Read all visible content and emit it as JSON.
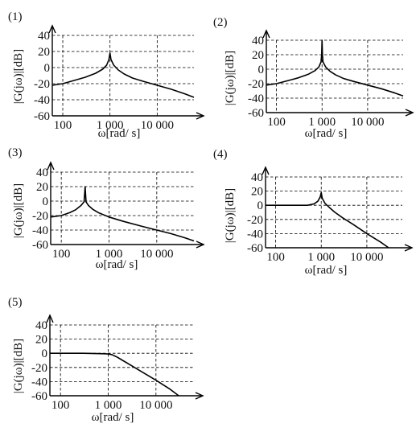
{
  "chart_data": [
    {
      "type": "line",
      "panel_label": "(1)",
      "ylabel": "|G(jω)|[dB]",
      "xlabel": "ω[rad/ s]",
      "x_scale": "log",
      "xlim": [
        60,
        60000
      ],
      "ylim": [
        -60,
        40
      ],
      "y_ticks": [
        "40",
        "20",
        "0",
        "-20",
        "-40",
        "-60"
      ],
      "x_ticks": [
        "100",
        "1 000",
        "10 000"
      ],
      "grid": true,
      "series": [
        {
          "x": [
            60,
            100,
            200,
            300,
            500,
            700,
            850,
            950,
            1000,
            1050,
            1200,
            1500,
            2000,
            3000,
            5000,
            10000,
            20000,
            40000,
            60000
          ],
          "y": [
            -22,
            -20,
            -15,
            -12,
            -7,
            -2,
            3,
            10,
            18,
            10,
            3,
            -3,
            -8,
            -13,
            -17,
            -22,
            -27,
            -33,
            -37
          ]
        }
      ]
    },
    {
      "type": "line",
      "panel_label": "(2)",
      "ylabel": "|G(jω)|[dB]",
      "xlabel": "ω[rad/ s]",
      "x_scale": "log",
      "xlim": [
        60,
        60000
      ],
      "ylim": [
        -60,
        40
      ],
      "y_ticks": [
        "40",
        "20",
        "0",
        "-20",
        "-40",
        "-60"
      ],
      "x_ticks": [
        "100",
        "1 000",
        "10 000"
      ],
      "grid": true,
      "series": [
        {
          "x": [
            60,
            100,
            200,
            300,
            500,
            700,
            850,
            950,
            980,
            1000,
            1020,
            1050,
            1200,
            1500,
            2000,
            3000,
            5000,
            10000,
            20000,
            40000,
            60000
          ],
          "y": [
            -22,
            -20,
            -15,
            -12,
            -7,
            -2,
            3,
            10,
            20,
            40,
            20,
            10,
            3,
            -3,
            -8,
            -13,
            -17,
            -22,
            -27,
            -33,
            -37
          ]
        }
      ]
    },
    {
      "type": "line",
      "panel_label": "(3)",
      "ylabel": "|G(jω)|[dB]",
      "xlabel": "ω[rad/ s]",
      "x_scale": "log",
      "xlim": [
        60,
        60000
      ],
      "ylim": [
        -60,
        40
      ],
      "y_ticks": [
        "40",
        "20",
        "0",
        "-20",
        "-40",
        "-60"
      ],
      "x_ticks": [
        "100",
        "1 000",
        "10 000"
      ],
      "grid": true,
      "series": [
        {
          "x": [
            60,
            100,
            150,
            200,
            260,
            300,
            316,
            330,
            370,
            450,
            600,
            1000,
            2000,
            5000,
            10000,
            20000,
            40000,
            60000
          ],
          "y": [
            -22,
            -20,
            -16,
            -12,
            -6,
            -1,
            20,
            -1,
            -6,
            -11,
            -16,
            -22,
            -28,
            -35,
            -40,
            -45,
            -51,
            -55
          ]
        }
      ]
    },
    {
      "type": "line",
      "panel_label": "(4)",
      "ylabel": "|G(jω)|[dB]",
      "xlabel": "ω[rad/ s]",
      "x_scale": "log",
      "xlim": [
        60,
        60000
      ],
      "ylim": [
        -60,
        40
      ],
      "y_ticks": [
        "40",
        "20",
        "0",
        "-20",
        "-40",
        "-60"
      ],
      "x_ticks": [
        "100",
        "1 000",
        "10 000"
      ],
      "grid": true,
      "series": [
        {
          "x": [
            60,
            100,
            300,
            500,
            700,
            850,
            950,
            1000,
            1050,
            1200,
            1500,
            2000,
            3000,
            5000,
            10000,
            20000,
            30000
          ],
          "y": [
            0,
            0,
            0,
            0,
            2,
            6,
            12,
            18,
            10,
            3,
            -3,
            -10,
            -18,
            -27,
            -40,
            -52,
            -60
          ]
        }
      ]
    },
    {
      "type": "line",
      "panel_label": "(5)",
      "ylabel": "|G(jω)|[dB]",
      "xlabel": "ω[rad/ s]",
      "x_scale": "log",
      "xlim": [
        60,
        60000
      ],
      "ylim": [
        -60,
        40
      ],
      "y_ticks": [
        "40",
        "20",
        "0",
        "-20",
        "-40",
        "-60"
      ],
      "x_ticks": [
        "100",
        "1 000",
        "10 000"
      ],
      "grid": true,
      "series": [
        {
          "x": [
            60,
            100,
            300,
            700,
            1000,
            1200,
            1500,
            2000,
            3000,
            5000,
            10000,
            20000,
            30000
          ],
          "y": [
            0,
            0,
            0,
            -0.5,
            -1,
            -2,
            -5,
            -10,
            -17,
            -26,
            -38,
            -51,
            -60
          ]
        }
      ]
    }
  ]
}
